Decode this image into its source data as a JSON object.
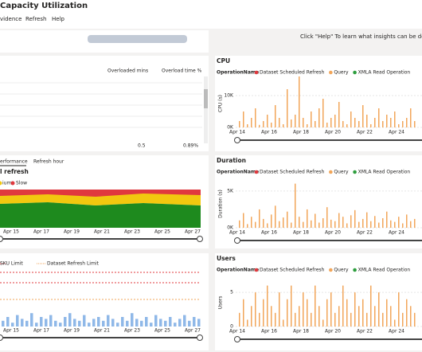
{
  "header": {
    "title": "Capacity Utilization",
    "menu": [
      "vidence",
      "Refresh",
      "Help"
    ],
    "help_text": "Click \"Help\" To learn what insights can be derived usi"
  },
  "overload_table": {
    "columns": [
      "Overloaded mins",
      "Overload time %"
    ],
    "totals": [
      "0.5",
      "0.89%"
    ]
  },
  "refresh_panel": {
    "tabs": [
      "erformance",
      "Refresh hour"
    ],
    "title": "l refresh",
    "legend": [
      "ium",
      "Slow"
    ],
    "x_labels": [
      "Apr 15",
      "Apr 17",
      "Apr 19",
      "Apr 21",
      "Apr 23",
      "Apr 25",
      "Apr 27"
    ]
  },
  "limit_panel": {
    "legend": [
      "SKU Limit",
      "Dataset Refresh Limit"
    ],
    "x_labels": [
      "Apr 15",
      "Apr 17",
      "Apr 19",
      "Apr 21",
      "Apr 23",
      "Apr 25",
      "Apr 27"
    ],
    "color": "#8fb8e8",
    "values": [
      3,
      5,
      2,
      6,
      4,
      3,
      7,
      2,
      5,
      4,
      6,
      3,
      2,
      5,
      7,
      4,
      3,
      6,
      2,
      4,
      5,
      3,
      6,
      4,
      2,
      5,
      3,
      7,
      4,
      3,
      5,
      2,
      6,
      4,
      3,
      5,
      2,
      4,
      6,
      3,
      5,
      4
    ]
  },
  "panels": [
    {
      "title": "CPU",
      "legend_title": "OperationName",
      "legend": [
        {
          "name": "Dataset Scheduled Refresh",
          "color": "#e0393e"
        },
        {
          "name": "Query",
          "color": "#f2a65a"
        },
        {
          "name": "XMLA Read Operation",
          "color": "#2e9e3e"
        }
      ],
      "y_label": "CPU (s)",
      "ylim": [
        0,
        15000
      ],
      "yticks": [
        {
          "value": 0,
          "label": "0K"
        },
        {
          "value": 10000,
          "label": "10K"
        }
      ],
      "x_labels": [
        "Apr 14",
        "Apr 16",
        "Apr 18",
        "Apr 20",
        "Apr 22",
        "Apr 24",
        "A"
      ],
      "values": [
        2000,
        5000,
        1000,
        3000,
        6000,
        800,
        2000,
        4000,
        1500,
        7000,
        3000,
        1000,
        12000,
        2500,
        4000,
        16000,
        3000,
        1000,
        5000,
        2000,
        6000,
        9000,
        1500,
        3000,
        4000,
        8000,
        2000,
        1000,
        5000,
        3000,
        2000,
        7000,
        4000,
        1000,
        3000,
        6000,
        2000,
        4000,
        3000,
        5000,
        1000,
        2000,
        3000,
        6000,
        2000
      ]
    },
    {
      "title": "Duration",
      "legend_title": "OperationName",
      "legend": [
        {
          "name": "Dataset Scheduled Refresh",
          "color": "#e0393e"
        },
        {
          "name": "Query",
          "color": "#f2a65a"
        },
        {
          "name": "XMLA Read Operation",
          "color": "#2e9e3e"
        }
      ],
      "y_label": "Duration (s)",
      "ylim": [
        0,
        6500
      ],
      "yticks": [
        {
          "value": 0,
          "label": "0K"
        },
        {
          "value": 5000,
          "label": "5K"
        }
      ],
      "x_labels": [
        "Apr 14",
        "Apr 16",
        "Apr 18",
        "Apr 20",
        "Apr 22",
        "Apr 24",
        "A"
      ],
      "values": [
        1000,
        2000,
        500,
        1500,
        800,
        2500,
        1200,
        600,
        1800,
        3000,
        900,
        1400,
        2200,
        700,
        6000,
        1500,
        800,
        2500,
        1000,
        1900,
        700,
        1300,
        2800,
        1100,
        900,
        2000,
        1500,
        600,
        1700,
        2400,
        800,
        1200,
        2100,
        900,
        1600,
        700,
        1300,
        2200,
        1000,
        800,
        1500,
        600,
        1800,
        900,
        1200
      ]
    },
    {
      "title": "Users",
      "legend_title": "OperationName",
      "legend": [
        {
          "name": "Dataset Scheduled Refresh",
          "color": "#e0393e"
        },
        {
          "name": "Query",
          "color": "#f2a65a"
        },
        {
          "name": "XMLA Read Operation",
          "color": "#2e9e3e"
        }
      ],
      "y_label": "Users",
      "ylim": [
        0,
        7
      ],
      "yticks": [
        {
          "value": 0,
          "label": "0"
        },
        {
          "value": 5,
          "label": "5"
        }
      ],
      "x_labels": [
        "Apr 14",
        "Apr 16",
        "Apr 18",
        "Apr 20",
        "Apr 22",
        "Apr 24",
        "A"
      ],
      "values": [
        2,
        4,
        1,
        3,
        5,
        2,
        4,
        6,
        3,
        2,
        5,
        1,
        4,
        6,
        2,
        3,
        5,
        4,
        2,
        6,
        3,
        1,
        4,
        5,
        2,
        3,
        6,
        4,
        2,
        5,
        3,
        4,
        2,
        6,
        3,
        5,
        2,
        4,
        3,
        1,
        5,
        2,
        4,
        3,
        2
      ]
    }
  ]
}
